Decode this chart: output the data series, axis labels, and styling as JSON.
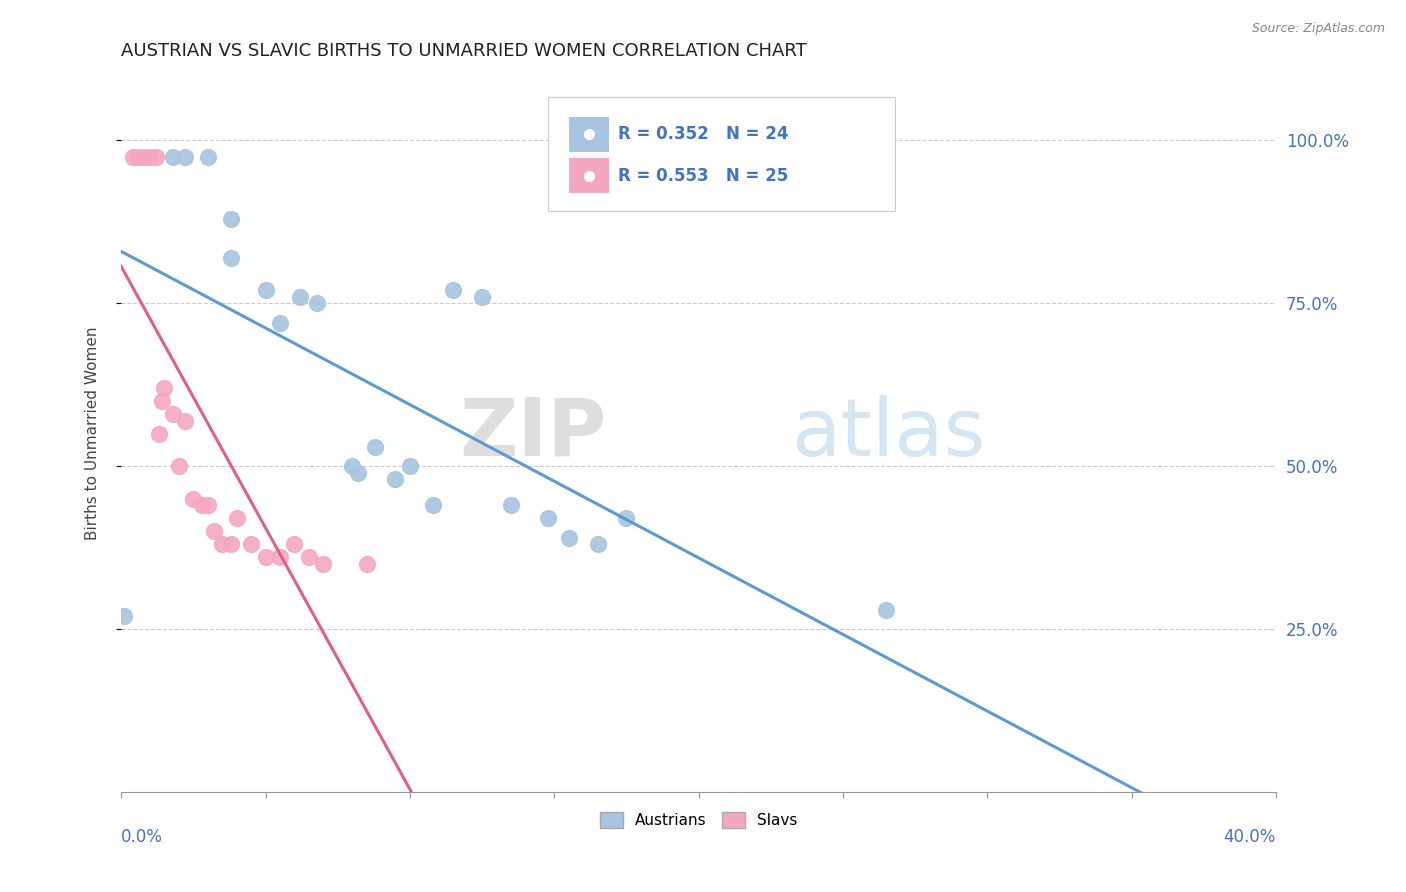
{
  "title": "AUSTRIAN VS SLAVIC BIRTHS TO UNMARRIED WOMEN CORRELATION CHART",
  "source": "Source: ZipAtlas.com",
  "ylabel_left": "Births to Unmarried Women",
  "austrian_R": 0.352,
  "austrian_N": 24,
  "slavic_R": 0.553,
  "slavic_N": 25,
  "austrian_color": "#a8c4e0",
  "slavic_color": "#f4a8c0",
  "austrian_line_color": "#5b9bd5",
  "slavic_line_color": "#e06080",
  "watermark_zip": "ZIP",
  "watermark_atlas": "atlas",
  "xlim": [
    0.0,
    0.4
  ],
  "ylim": [
    0.0,
    1.1
  ],
  "yticks": [
    0.25,
    0.5,
    0.75,
    1.0
  ],
  "ytick_labels": [
    "25.0%",
    "50.0%",
    "75.0%",
    "100.0%"
  ],
  "austrians_x": [
    0.001,
    0.018,
    0.022,
    0.03,
    0.038,
    0.038,
    0.05,
    0.055,
    0.062,
    0.068,
    0.08,
    0.082,
    0.088,
    0.095,
    0.1,
    0.108,
    0.115,
    0.125,
    0.135,
    0.148,
    0.155,
    0.165,
    0.175,
    0.265
  ],
  "austrians_y": [
    0.27,
    0.975,
    0.975,
    0.975,
    0.88,
    0.82,
    0.77,
    0.72,
    0.76,
    0.75,
    0.5,
    0.49,
    0.53,
    0.48,
    0.5,
    0.44,
    0.77,
    0.76,
    0.44,
    0.42,
    0.39,
    0.38,
    0.42,
    0.28
  ],
  "slavs_x": [
    0.004,
    0.006,
    0.008,
    0.01,
    0.012,
    0.013,
    0.014,
    0.015,
    0.018,
    0.02,
    0.022,
    0.025,
    0.028,
    0.03,
    0.032,
    0.035,
    0.038,
    0.04,
    0.045,
    0.05,
    0.055,
    0.06,
    0.065,
    0.07,
    0.085
  ],
  "slavs_y": [
    0.975,
    0.975,
    0.975,
    0.975,
    0.975,
    0.55,
    0.6,
    0.62,
    0.58,
    0.5,
    0.57,
    0.45,
    0.44,
    0.44,
    0.4,
    0.38,
    0.38,
    0.42,
    0.38,
    0.36,
    0.36,
    0.38,
    0.36,
    0.35,
    0.35
  ],
  "line_austrian_x0": 0.001,
  "line_austrian_x1": 0.175,
  "line_slavic_x0": 0.004,
  "line_slavic_x1": 0.175
}
